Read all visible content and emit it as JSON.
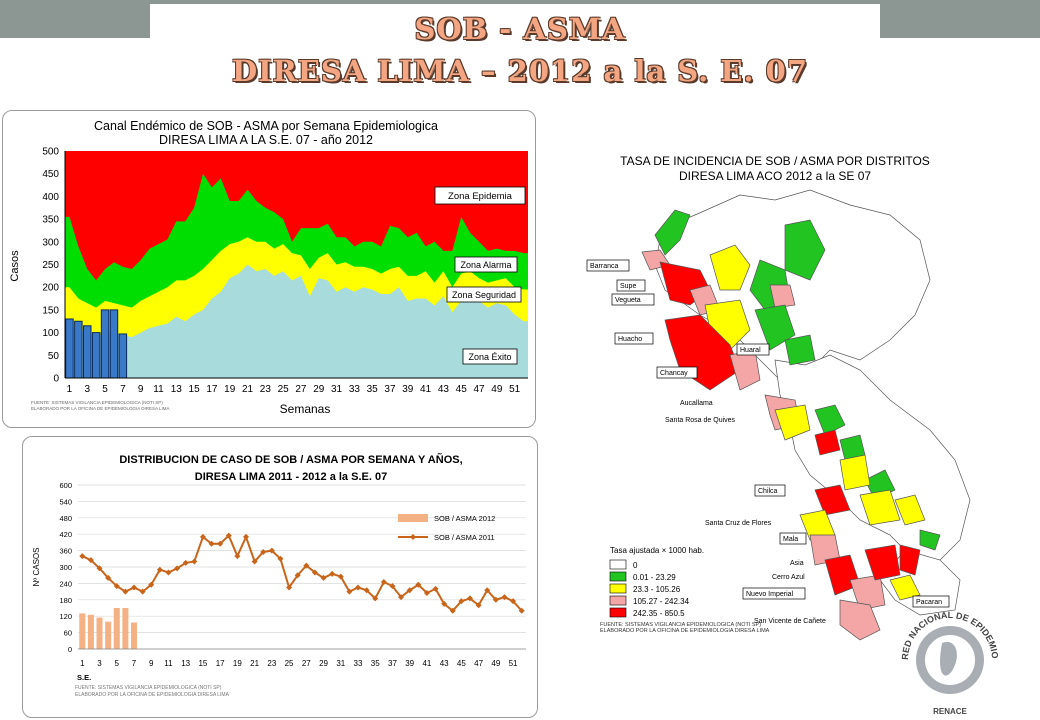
{
  "header": {
    "title1": "SOB - ASMA",
    "title2": "DIRESA LIMA – 2012 a la  S. E. 07"
  },
  "chart_data": [
    {
      "type": "area",
      "title": "Canal Endémico de SOB - ASMA  por Semana Epidemiologica",
      "subtitle": "DIRESA LIMA A LA S.E. 07 - año 2012",
      "xlabel": "Semanas",
      "ylabel": "Casos",
      "ylim": [
        0,
        500
      ],
      "yticks": [
        0,
        50,
        100,
        150,
        200,
        250,
        300,
        350,
        400,
        450,
        500
      ],
      "xticks": [
        1,
        3,
        5,
        7,
        9,
        11,
        13,
        15,
        17,
        19,
        21,
        23,
        25,
        27,
        29,
        31,
        33,
        35,
        37,
        39,
        41,
        43,
        45,
        47,
        49,
        51
      ],
      "zones": {
        "epidemia": "Zona Epidemia",
        "alarma": "Zona Alarma",
        "seguridad": "Zona Seguridad",
        "exito": "Zona Éxito"
      },
      "colors": {
        "epidemia": "#ff0000",
        "alarma": "#00dd00",
        "seguridad": "#ffff00",
        "exito": "#a8dcdc",
        "bars": "#3a78c8"
      },
      "weeks": [
        1,
        2,
        3,
        4,
        5,
        6,
        7,
        8,
        9,
        10,
        11,
        12,
        13,
        14,
        15,
        16,
        17,
        18,
        19,
        20,
        21,
        22,
        23,
        24,
        25,
        26,
        27,
        28,
        29,
        30,
        31,
        32,
        33,
        34,
        35,
        36,
        37,
        38,
        39,
        40,
        41,
        42,
        43,
        44,
        45,
        46,
        47,
        48,
        49,
        50,
        51,
        52
      ],
      "exito": [
        115,
        110,
        100,
        95,
        95,
        100,
        95,
        90,
        100,
        110,
        115,
        120,
        135,
        125,
        140,
        150,
        175,
        190,
        220,
        230,
        250,
        235,
        240,
        225,
        235,
        215,
        225,
        180,
        220,
        215,
        190,
        200,
        190,
        200,
        195,
        185,
        185,
        200,
        170,
        175,
        175,
        160,
        180,
        145,
        170,
        175,
        170,
        155,
        165,
        160,
        140,
        125
      ],
      "seguridad": [
        200,
        175,
        165,
        155,
        170,
        165,
        160,
        155,
        170,
        180,
        190,
        200,
        215,
        215,
        225,
        240,
        260,
        280,
        295,
        300,
        310,
        300,
        300,
        285,
        295,
        275,
        270,
        240,
        265,
        275,
        250,
        255,
        245,
        245,
        240,
        230,
        240,
        245,
        225,
        225,
        235,
        210,
        235,
        200,
        230,
        235,
        220,
        210,
        215,
        220,
        200,
        195
      ],
      "alarma": [
        355,
        290,
        240,
        215,
        240,
        255,
        245,
        240,
        260,
        285,
        295,
        305,
        345,
        345,
        375,
        450,
        420,
        440,
        390,
        390,
        415,
        390,
        375,
        365,
        350,
        300,
        330,
        330,
        330,
        340,
        310,
        310,
        290,
        300,
        300,
        290,
        335,
        330,
        310,
        320,
        290,
        300,
        280,
        280,
        355,
        320,
        300,
        280,
        285,
        280,
        280,
        275
      ],
      "bars": [
        130,
        125,
        115,
        100,
        150,
        150,
        97
      ]
    },
    {
      "type": "bar",
      "title": "DISTRIBUCION DE CASO DE SOB / ASMA POR SEMANA Y AÑOS,",
      "subtitle": "DIRESA LIMA  2011 - 2012  a la S.E.  07",
      "xlabel": "S.E.",
      "ylabel": "Nº CASOS",
      "ylim": [
        0,
        600
      ],
      "yticks": [
        0,
        60,
        120,
        180,
        240,
        300,
        360,
        420,
        480,
        540,
        600
      ],
      "xticks": [
        1,
        3,
        5,
        7,
        9,
        11,
        13,
        15,
        17,
        19,
        21,
        23,
        25,
        27,
        29,
        31,
        33,
        35,
        37,
        39,
        41,
        43,
        45,
        47,
        49,
        51
      ],
      "series": [
        {
          "name": "SOB / ASMA 2012",
          "color": "#f4b183",
          "values": [
            130,
            125,
            115,
            100,
            150,
            150,
            97
          ]
        },
        {
          "name": "SOB / ASMA 2011",
          "color": "#c8651b",
          "values": [
            340,
            325,
            295,
            260,
            230,
            210,
            225,
            210,
            235,
            290,
            280,
            295,
            315,
            320,
            410,
            385,
            385,
            415,
            340,
            410,
            320,
            355,
            360,
            330,
            225,
            270,
            305,
            280,
            260,
            275,
            265,
            210,
            225,
            215,
            185,
            245,
            230,
            190,
            215,
            235,
            205,
            220,
            165,
            140,
            175,
            185,
            160,
            215,
            180,
            190,
            175,
            140
          ]
        }
      ]
    }
  ],
  "footnotes": {
    "c1_line1": "FUENTE: SISTEMAS VIGILANCIA EPIDEMIOLOGICA (NOTI SP)",
    "c1_line2": "ELABORADO POR LA OFICINA DE EPIDEMIOLOGIA  DIRESA LIMA",
    "c2_line1": "FUENTE: SISTEMAS VIGILANCIA EPIDEMIOLOGICA  (NOTI SP)",
    "c2_line2": "ELABORADO POR LA OFICINA DE EPIDEMIOLOGIA   DIRESA LIMA",
    "map_line1": "FUENTE: SISTEMAS VIGILANCIA EPIDEMIOLOGICA (NOTI SP)",
    "map_line2": "ELABORADO POR LA OFICINA DE EPIDEMIOLOGIA DIRESA LIMA"
  },
  "map": {
    "title1": "TASA DE INCIDENCIA DE SOB / ASMA POR DISTRITOS",
    "title2": "DIRESA LIMA ACO 2012 a la SE 07",
    "north_arrow": "Â",
    "legend_title": "Tasa ajustada × 1000 hab.",
    "legend": [
      {
        "label": "0",
        "color": "#ffffff"
      },
      {
        "label": "0.01 - 23.29",
        "color": "#22c422"
      },
      {
        "label": "23.3 - 105.26",
        "color": "#ffff00"
      },
      {
        "label": "105.27 - 242.34",
        "color": "#f4a6a6"
      },
      {
        "label": "242.35 - 850.5",
        "color": "#ff0000"
      }
    ],
    "boxed_labels": [
      "Barranca",
      "Supe",
      "Vegueta",
      "Huacho",
      "Huaral",
      "Chancay",
      "Chilca",
      "Mala",
      "Nuevo Imperial",
      "Pacaran"
    ],
    "plain_labels": [
      "Aucallama",
      "Santa Rosa de Quives",
      "Santa Cruz de Flores",
      "Asia",
      "Cerro Azul",
      "San Vicente de Cañete"
    ]
  },
  "logo": {
    "text": "RED NACIONAL DE EPIDEMIOLOGIA",
    "subtext": "RENACE"
  }
}
